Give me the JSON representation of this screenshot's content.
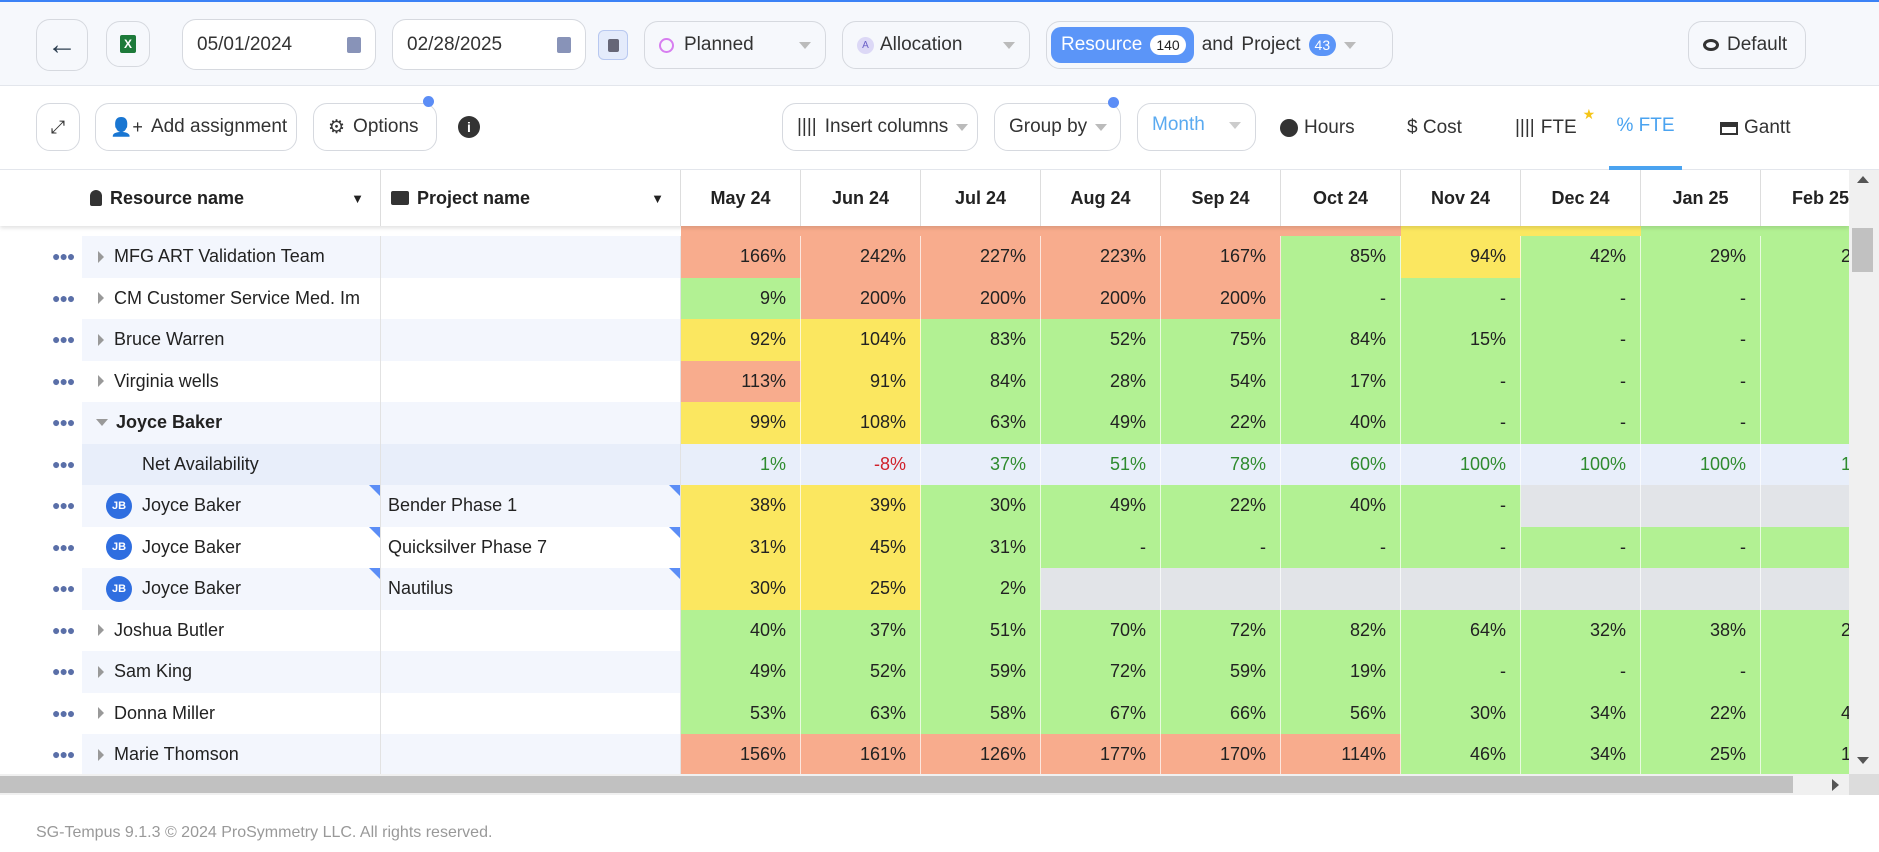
{
  "topbar": {
    "start_date": "05/01/2024",
    "end_date": "02/28/2025",
    "plan_type": "Planned",
    "allocation": "Allocation",
    "resource_label": "Resource",
    "resource_count": "140",
    "and_label": "and",
    "project_label": "Project",
    "project_count": "43",
    "view": "Default"
  },
  "toolbar": {
    "add_assignment": "Add assignment",
    "options": "Options",
    "insert_columns": "Insert columns",
    "group_by": "Group by",
    "period": "Month",
    "tabs": [
      {
        "label": "Hours"
      },
      {
        "label": "$ Cost"
      },
      {
        "label": "FTE"
      },
      {
        "label": "% FTE",
        "active": true
      },
      {
        "label": "Gantt"
      }
    ]
  },
  "grid": {
    "col_resource": "Resource name",
    "col_project": "Project name",
    "months": [
      "May 24",
      "Jun 24",
      "Jul 24",
      "Aug 24",
      "Sep 24",
      "Oct 24",
      "Nov 24",
      "Dec 24",
      "Jan 25",
      "Feb 25"
    ],
    "colors": {
      "s": "#f8ac8d",
      "g": "#b2f193",
      "y": "#fbe760",
      "n": "#e8eefa",
      "x": "#e2e4e8"
    },
    "top_strip": [
      "s",
      "s",
      "s",
      "s",
      "s",
      "s",
      "y",
      "y",
      "g",
      "g"
    ],
    "rows": [
      {
        "name": "MFG ART Validation Team",
        "type": "group",
        "values": [
          "166%",
          "242%",
          "227%",
          "223%",
          "167%",
          "85%",
          "94%",
          "42%",
          "29%",
          "2"
        ],
        "colors": [
          "s",
          "s",
          "s",
          "s",
          "s",
          "g",
          "y",
          "g",
          "g",
          "g"
        ]
      },
      {
        "name": "CM Customer Service Med. Im",
        "type": "group",
        "values": [
          "9%",
          "200%",
          "200%",
          "200%",
          "200%",
          "-",
          "-",
          "-",
          "-",
          ""
        ],
        "colors": [
          "g",
          "s",
          "s",
          "s",
          "s",
          "g",
          "g",
          "g",
          "g",
          "g"
        ]
      },
      {
        "name": "Bruce Warren",
        "type": "group",
        "values": [
          "92%",
          "104%",
          "83%",
          "52%",
          "75%",
          "84%",
          "15%",
          "-",
          "-",
          ""
        ],
        "colors": [
          "y",
          "y",
          "g",
          "g",
          "g",
          "g",
          "g",
          "g",
          "g",
          "g"
        ]
      },
      {
        "name": "Virginia wells",
        "type": "group",
        "values": [
          "113%",
          "91%",
          "84%",
          "28%",
          "54%",
          "17%",
          "-",
          "-",
          "-",
          ""
        ],
        "colors": [
          "s",
          "y",
          "g",
          "g",
          "g",
          "g",
          "g",
          "g",
          "g",
          "g"
        ]
      },
      {
        "name": "Joyce Baker",
        "type": "expanded",
        "values": [
          "99%",
          "108%",
          "63%",
          "49%",
          "22%",
          "40%",
          "-",
          "-",
          "-",
          ""
        ],
        "colors": [
          "y",
          "y",
          "g",
          "g",
          "g",
          "g",
          "g",
          "g",
          "g",
          "g"
        ]
      },
      {
        "name": "Net Availability",
        "type": "net",
        "values": [
          "1%",
          "-8%",
          "37%",
          "51%",
          "78%",
          "60%",
          "100%",
          "100%",
          "100%",
          "10"
        ],
        "colors": [
          "n",
          "n",
          "n",
          "n",
          "n",
          "n",
          "n",
          "n",
          "n",
          "n"
        ]
      },
      {
        "name": "Joyce Baker",
        "initials": "JB",
        "project": "Bender Phase 1",
        "type": "assignment",
        "values": [
          "38%",
          "39%",
          "30%",
          "49%",
          "22%",
          "40%",
          "-",
          "",
          "",
          ""
        ],
        "colors": [
          "y",
          "y",
          "g",
          "g",
          "g",
          "g",
          "g",
          "x",
          "x",
          "x"
        ]
      },
      {
        "name": "Joyce Baker",
        "initials": "JB",
        "project": "Quicksilver Phase 7",
        "type": "assignment",
        "values": [
          "31%",
          "45%",
          "31%",
          "-",
          "-",
          "-",
          "-",
          "-",
          "-",
          ""
        ],
        "colors": [
          "y",
          "y",
          "g",
          "g",
          "g",
          "g",
          "g",
          "g",
          "g",
          "g"
        ]
      },
      {
        "name": "Joyce Baker",
        "initials": "JB",
        "project": "Nautilus",
        "type": "assignment",
        "values": [
          "30%",
          "25%",
          "2%",
          "",
          "",
          "",
          "",
          "",
          "",
          ""
        ],
        "colors": [
          "y",
          "y",
          "g",
          "x",
          "x",
          "x",
          "x",
          "x",
          "x",
          "x"
        ]
      },
      {
        "name": "Joshua Butler",
        "type": "group",
        "values": [
          "40%",
          "37%",
          "51%",
          "70%",
          "72%",
          "82%",
          "64%",
          "32%",
          "38%",
          "2"
        ],
        "colors": [
          "g",
          "g",
          "g",
          "g",
          "g",
          "g",
          "g",
          "g",
          "g",
          "g"
        ]
      },
      {
        "name": "Sam King",
        "type": "group",
        "values": [
          "49%",
          "52%",
          "59%",
          "72%",
          "59%",
          "19%",
          "-",
          "-",
          "-",
          ""
        ],
        "colors": [
          "g",
          "g",
          "g",
          "g",
          "g",
          "g",
          "g",
          "g",
          "g",
          "g"
        ]
      },
      {
        "name": "Donna Miller",
        "type": "group",
        "values": [
          "53%",
          "63%",
          "58%",
          "67%",
          "66%",
          "56%",
          "30%",
          "34%",
          "22%",
          "4"
        ],
        "colors": [
          "g",
          "g",
          "g",
          "g",
          "g",
          "g",
          "g",
          "g",
          "g",
          "g"
        ]
      },
      {
        "name": "Marie Thomson",
        "type": "group",
        "values": [
          "156%",
          "161%",
          "126%",
          "177%",
          "170%",
          "114%",
          "46%",
          "34%",
          "25%",
          "1"
        ],
        "colors": [
          "s",
          "s",
          "s",
          "s",
          "s",
          "s",
          "g",
          "g",
          "g",
          "g"
        ]
      }
    ]
  },
  "footer": "SG-Tempus 9.1.3 © 2024 ProSymmetry LLC. All rights reserved."
}
